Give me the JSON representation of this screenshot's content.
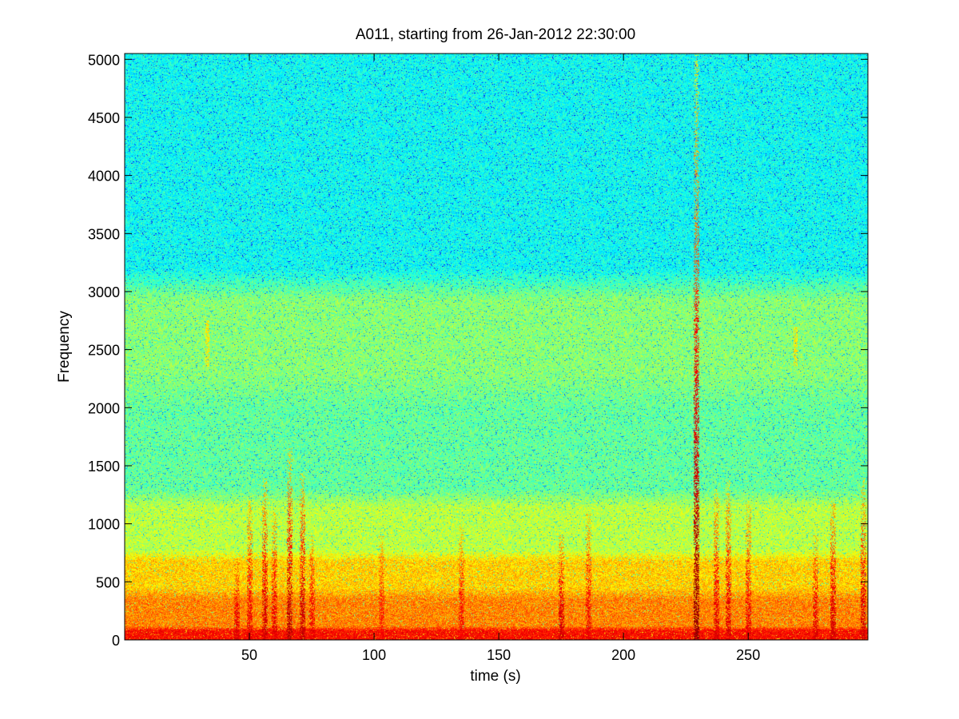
{
  "chart_data": {
    "type": "heatmap",
    "title": "A011, starting from 26-Jan-2012 22:30:00",
    "xlabel": "time (s)",
    "ylabel": "Frequency",
    "xlim": [
      0,
      298
    ],
    "ylim": [
      0,
      5050
    ],
    "xticks": [
      50,
      100,
      150,
      200,
      250
    ],
    "yticks": [
      0,
      500,
      1000,
      1500,
      2000,
      2500,
      3000,
      3500,
      4000,
      4500,
      5000
    ],
    "colormap": "jet",
    "colormap_stops": [
      "#00008f",
      "#0000ff",
      "#00ffff",
      "#ffff00",
      "#ff0000",
      "#800000"
    ],
    "background_level": 0.42,
    "frequency_bands": [
      {
        "from": 0,
        "to": 120,
        "level": 0.8
      },
      {
        "from": 120,
        "to": 450,
        "level": 0.7
      },
      {
        "from": 450,
        "to": 780,
        "level": 0.64
      },
      {
        "from": 780,
        "to": 1300,
        "level": 0.55
      },
      {
        "from": 1300,
        "to": 2300,
        "level": 0.48
      },
      {
        "from": 2300,
        "to": 3200,
        "level": 0.51
      },
      {
        "from": 3200,
        "to": 5050,
        "level": 0.41
      }
    ],
    "transient_events": [
      {
        "time": 45,
        "max_freq": 700,
        "level": 0.86
      },
      {
        "time": 50,
        "max_freq": 1200,
        "level": 0.84
      },
      {
        "time": 56,
        "max_freq": 1400,
        "level": 0.88
      },
      {
        "time": 60,
        "max_freq": 1100,
        "level": 0.85
      },
      {
        "time": 66,
        "max_freq": 1650,
        "level": 0.92
      },
      {
        "time": 71,
        "max_freq": 1450,
        "level": 0.9
      },
      {
        "time": 75,
        "max_freq": 900,
        "level": 0.84
      },
      {
        "time": 103,
        "max_freq": 900,
        "level": 0.8
      },
      {
        "time": 135,
        "max_freq": 1000,
        "level": 0.82
      },
      {
        "time": 175,
        "max_freq": 900,
        "level": 0.88
      },
      {
        "time": 186,
        "max_freq": 1100,
        "level": 0.84
      },
      {
        "time": 229,
        "max_freq": 5050,
        "level": 0.97
      },
      {
        "time": 237,
        "max_freq": 1300,
        "level": 0.86
      },
      {
        "time": 242,
        "max_freq": 1400,
        "level": 0.86
      },
      {
        "time": 250,
        "max_freq": 1200,
        "level": 0.84
      },
      {
        "time": 277,
        "max_freq": 900,
        "level": 0.86
      },
      {
        "time": 284,
        "max_freq": 1200,
        "level": 0.88
      },
      {
        "time": 296,
        "max_freq": 1400,
        "level": 0.88
      }
    ],
    "narrowband_patches": [
      {
        "time": 33,
        "freq_from": 2350,
        "freq_to": 2750,
        "level": 0.62
      },
      {
        "time": 269,
        "freq_from": 2350,
        "freq_to": 2700,
        "level": 0.62
      }
    ],
    "grid": false,
    "colorbar": false
  }
}
